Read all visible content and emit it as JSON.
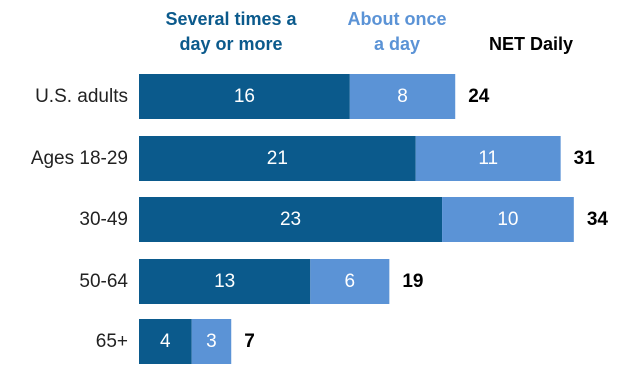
{
  "chart_data": {
    "type": "bar",
    "orientation": "horizontal",
    "stacked": true,
    "categories": [
      "U.S. adults",
      "Ages 18-29",
      "30-49",
      "50-64",
      "65+"
    ],
    "series": [
      {
        "name": "Several times a day or more",
        "legend_lines": [
          "Several times a",
          "day or more"
        ],
        "color": "#0b5a8c",
        "values": [
          16,
          21,
          23,
          13,
          4
        ]
      },
      {
        "name": "About once a day",
        "legend_lines": [
          "About once",
          "a day"
        ],
        "color": "#5b93d6",
        "values": [
          8,
          11,
          10,
          6,
          3
        ]
      }
    ],
    "net": {
      "label": "NET Daily",
      "values": [
        24,
        31,
        34,
        19,
        7
      ]
    },
    "xlim": [
      0,
      34
    ],
    "grid": false,
    "legend": "top"
  }
}
